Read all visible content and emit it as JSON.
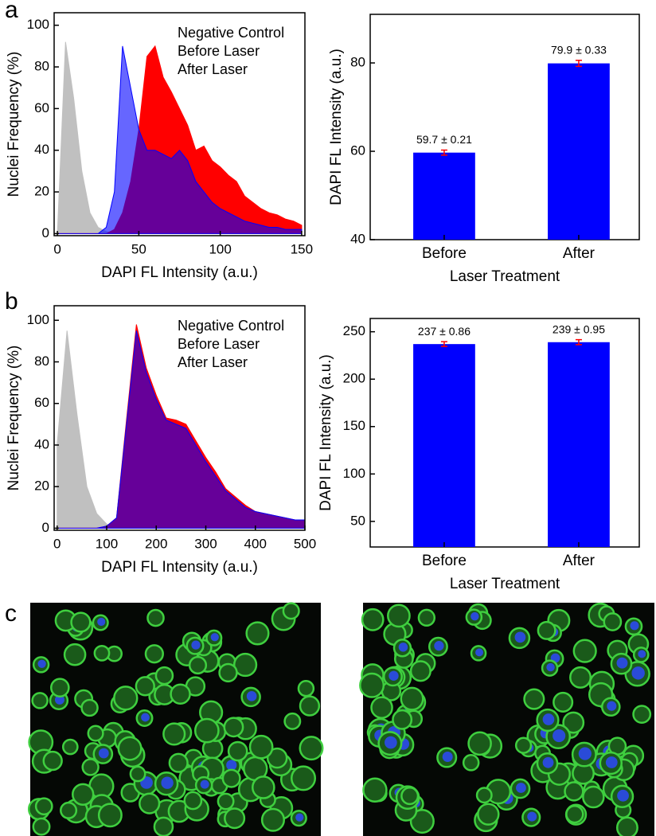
{
  "panels": [
    "a",
    "b",
    "c"
  ],
  "chart_data": [
    {
      "type": "area",
      "x_label": "DAPI FL Intensity (a.u.)",
      "y_label": "Nuclei Frequency (%)",
      "x": [
        0,
        5,
        10,
        15,
        20,
        25,
        30,
        35,
        40,
        45,
        50,
        55,
        60,
        65,
        70,
        75,
        80,
        85,
        90,
        95,
        100,
        105,
        110,
        115,
        120,
        125,
        130,
        135,
        140,
        145,
        150
      ],
      "series": [
        {
          "name": "Negative Control",
          "color": "#c0c0c0",
          "values": [
            0,
            92,
            65,
            30,
            10,
            3,
            1,
            0,
            0,
            0,
            0,
            0,
            0,
            0,
            0,
            0,
            0,
            0,
            0,
            0,
            0,
            0,
            0,
            0,
            0,
            0,
            0,
            0,
            0,
            0,
            0
          ]
        },
        {
          "name": "After Laser",
          "color": "#ff0000",
          "values": [
            0,
            0,
            0,
            0,
            0,
            0,
            0,
            2,
            10,
            25,
            50,
            85,
            90,
            75,
            68,
            60,
            52,
            40,
            42,
            35,
            32,
            28,
            25,
            18,
            15,
            12,
            10,
            9,
            7,
            6,
            4
          ]
        },
        {
          "name": "Before Laser",
          "color": "#0000ff",
          "values": [
            0,
            0,
            0,
            0,
            0,
            0,
            3,
            20,
            90,
            70,
            50,
            40,
            40,
            38,
            36,
            40,
            35,
            25,
            20,
            15,
            12,
            10,
            8,
            6,
            5,
            4,
            3,
            3,
            2,
            2,
            2
          ]
        }
      ],
      "legend_order": [
        0,
        2,
        1
      ],
      "legend": "upper right",
      "xlim": [
        -2,
        152
      ],
      "xticks": [
        0,
        50,
        100,
        150
      ],
      "ylim": [
        -1,
        106
      ],
      "yticks": [
        0,
        20,
        40,
        60,
        80,
        100
      ]
    },
    {
      "type": "bar",
      "x_label": "Laser Treatment",
      "y_label": "DAPI FL Intensity (a.u.)",
      "categories": [
        "Before",
        "After"
      ],
      "values": [
        59.7,
        79.9
      ],
      "errors": [
        0.21,
        0.33
      ],
      "value_labels": [
        "59.7 ± 0.21",
        "79.9 ± 0.33"
      ],
      "color": "#0000ff",
      "error_color": "#ff0000",
      "ylim": [
        40,
        91
      ],
      "yticks": [
        40,
        60,
        80
      ]
    },
    {
      "type": "area",
      "x_label": "DAPI FL Intensity (a.u.)",
      "y_label": "Nuclei Frequency (%)",
      "x": [
        0,
        20,
        40,
        60,
        80,
        100,
        120,
        140,
        160,
        180,
        200,
        220,
        240,
        260,
        280,
        300,
        320,
        340,
        360,
        380,
        400,
        420,
        440,
        460,
        480,
        500
      ],
      "series": [
        {
          "name": "Negative Control",
          "color": "#c0c0c0",
          "values": [
            40,
            95,
            55,
            20,
            7,
            2,
            0,
            0,
            0,
            0,
            0,
            0,
            0,
            0,
            0,
            0,
            0,
            0,
            0,
            0,
            0,
            0,
            0,
            0,
            0,
            0
          ]
        },
        {
          "name": "After Laser",
          "color": "#ff0000",
          "values": [
            0,
            0,
            0,
            0,
            0,
            1,
            5,
            52,
            98,
            77,
            64,
            53,
            52,
            50,
            42,
            34,
            27,
            19,
            15,
            11,
            8,
            7,
            6,
            5,
            4,
            4
          ]
        },
        {
          "name": "Before Laser",
          "color": "#0000ff",
          "values": [
            0,
            0,
            0,
            0,
            0,
            1,
            5,
            50,
            95,
            75,
            62,
            52,
            50,
            48,
            40,
            32,
            25,
            18,
            14,
            10,
            8,
            7,
            6,
            5,
            4,
            4
          ]
        }
      ],
      "legend_order": [
        0,
        2,
        1
      ],
      "legend": "upper right",
      "xlim": [
        -6,
        500
      ],
      "xticks": [
        0,
        100,
        200,
        300,
        400,
        500
      ],
      "ylim": [
        -1,
        107
      ],
      "yticks": [
        0,
        20,
        40,
        60,
        80,
        100
      ]
    },
    {
      "type": "bar",
      "x_label": "Laser Treatment",
      "y_label": "DAPI FL Intensity (a.u.)",
      "categories": [
        "Before",
        "After"
      ],
      "values": [
        237,
        239
      ],
      "errors": [
        0.86,
        0.95
      ],
      "value_labels": [
        "237 ± 0.86",
        "239 ± 0.95"
      ],
      "color": "#0000ff",
      "error_color": "#ff0000",
      "ylim": [
        23,
        264
      ],
      "yticks": [
        50,
        100,
        150,
        200,
        250
      ]
    }
  ]
}
